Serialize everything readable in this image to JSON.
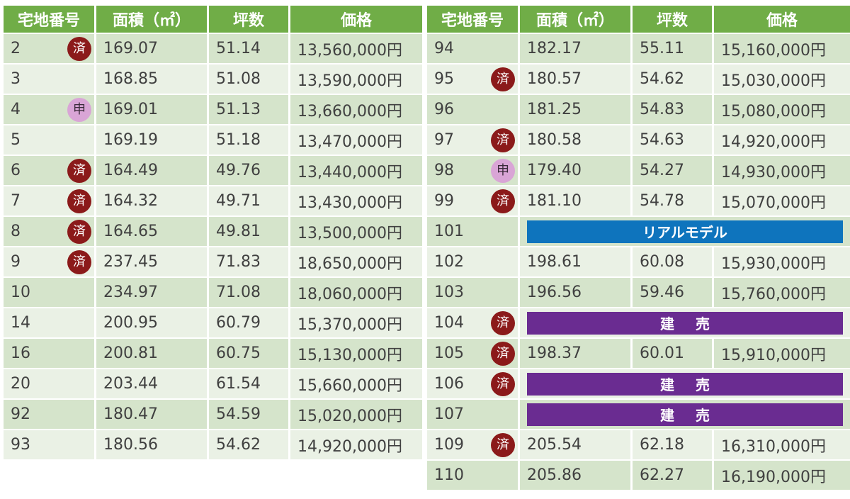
{
  "headers": [
    "宅地番号",
    "面積（㎡）",
    "坪数",
    "価格"
  ],
  "left_rows": [
    {
      "lot": "2",
      "badge": "済",
      "badge_type": "sold",
      "area": "169.07",
      "tsubo": "51.14",
      "price": "13,560,000円"
    },
    {
      "lot": "3",
      "badge": "",
      "badge_type": "",
      "area": "168.85",
      "tsubo": "51.08",
      "price": "13,590,000円"
    },
    {
      "lot": "4",
      "badge": "申",
      "badge_type": "applied",
      "area": "169.01",
      "tsubo": "51.13",
      "price": "13,660,000円"
    },
    {
      "lot": "5",
      "badge": "",
      "badge_type": "",
      "area": "169.19",
      "tsubo": "51.18",
      "price": "13,470,000円"
    },
    {
      "lot": "6",
      "badge": "済",
      "badge_type": "sold",
      "area": "164.49",
      "tsubo": "49.76",
      "price": "13,440,000円"
    },
    {
      "lot": "7",
      "badge": "済",
      "badge_type": "sold",
      "area": "164.32",
      "tsubo": "49.71",
      "price": "13,430,000円"
    },
    {
      "lot": "8",
      "badge": "済",
      "badge_type": "sold",
      "area": "164.65",
      "tsubo": "49.81",
      "price": "13,500,000円"
    },
    {
      "lot": "9",
      "badge": "済",
      "badge_type": "sold",
      "area": "237.45",
      "tsubo": "71.83",
      "price": "18,650,000円"
    },
    {
      "lot": "10",
      "badge": "",
      "badge_type": "",
      "area": "234.97",
      "tsubo": "71.08",
      "price": "18,060,000円"
    },
    {
      "lot": "14",
      "badge": "",
      "badge_type": "",
      "area": "200.95",
      "tsubo": "60.79",
      "price": "15,370,000円"
    },
    {
      "lot": "16",
      "badge": "",
      "badge_type": "",
      "area": "200.81",
      "tsubo": "60.75",
      "price": "15,130,000円"
    },
    {
      "lot": "20",
      "badge": "",
      "badge_type": "",
      "area": "203.44",
      "tsubo": "61.54",
      "price": "15,660,000円"
    },
    {
      "lot": "92",
      "badge": "",
      "badge_type": "",
      "area": "180.47",
      "tsubo": "54.59",
      "price": "15,020,000円"
    },
    {
      "lot": "93",
      "badge": "",
      "badge_type": "",
      "area": "180.56",
      "tsubo": "54.62",
      "price": "14,920,000円"
    }
  ],
  "right_rows": [
    {
      "lot": "94",
      "badge": "",
      "badge_type": "",
      "area": "182.17",
      "tsubo": "55.11",
      "price": "15,160,000円",
      "span_label": "",
      "span_type": ""
    },
    {
      "lot": "95",
      "badge": "済",
      "badge_type": "sold",
      "area": "180.57",
      "tsubo": "54.62",
      "price": "15,030,000円",
      "span_label": "",
      "span_type": ""
    },
    {
      "lot": "96",
      "badge": "",
      "badge_type": "",
      "area": "181.25",
      "tsubo": "54.83",
      "price": "15,080,000円",
      "span_label": "",
      "span_type": ""
    },
    {
      "lot": "97",
      "badge": "済",
      "badge_type": "sold",
      "area": "180.58",
      "tsubo": "54.63",
      "price": "14,920,000円",
      "span_label": "",
      "span_type": ""
    },
    {
      "lot": "98",
      "badge": "申",
      "badge_type": "applied",
      "area": "179.40",
      "tsubo": "54.27",
      "price": "14,930,000円",
      "span_label": "",
      "span_type": ""
    },
    {
      "lot": "99",
      "badge": "済",
      "badge_type": "sold",
      "area": "181.10",
      "tsubo": "54.78",
      "price": "15,070,000円",
      "span_label": "",
      "span_type": ""
    },
    {
      "lot": "101",
      "badge": "",
      "badge_type": "",
      "area": "",
      "tsubo": "",
      "price": "",
      "span_label": "リアルモデル",
      "span_type": "model"
    },
    {
      "lot": "102",
      "badge": "",
      "badge_type": "",
      "area": "198.61",
      "tsubo": "60.08",
      "price": "15,930,000円",
      "span_label": "",
      "span_type": ""
    },
    {
      "lot": "103",
      "badge": "",
      "badge_type": "",
      "area": "196.56",
      "tsubo": "59.46",
      "price": "15,760,000円",
      "span_label": "",
      "span_type": ""
    },
    {
      "lot": "104",
      "badge": "済",
      "badge_type": "sold",
      "area": "",
      "tsubo": "",
      "price": "",
      "span_label": "建売",
      "span_type": "built"
    },
    {
      "lot": "105",
      "badge": "済",
      "badge_type": "sold",
      "area": "198.37",
      "tsubo": "60.01",
      "price": "15,910,000円",
      "span_label": "",
      "span_type": ""
    },
    {
      "lot": "106",
      "badge": "済",
      "badge_type": "sold",
      "area": "",
      "tsubo": "",
      "price": "",
      "span_label": "建売",
      "span_type": "built"
    },
    {
      "lot": "107",
      "badge": "",
      "badge_type": "",
      "area": "",
      "tsubo": "",
      "price": "",
      "span_label": "建売",
      "span_type": "built"
    },
    {
      "lot": "109",
      "badge": "済",
      "badge_type": "sold",
      "area": "205.54",
      "tsubo": "62.18",
      "price": "16,310,000円",
      "span_label": "",
      "span_type": ""
    },
    {
      "lot": "110",
      "badge": "",
      "badge_type": "",
      "area": "205.86",
      "tsubo": "62.27",
      "price": "16,190,000円",
      "span_label": "",
      "span_type": ""
    }
  ],
  "colors": {
    "header_green": "#70ad47",
    "row_dark": "#d5e4cb",
    "row_light": "#eaf1e5",
    "badge_sold": "#8b1a1a",
    "badge_applied": "#d9a5d6",
    "bar_model": "#0e74bd",
    "bar_built": "#6a2c91"
  }
}
